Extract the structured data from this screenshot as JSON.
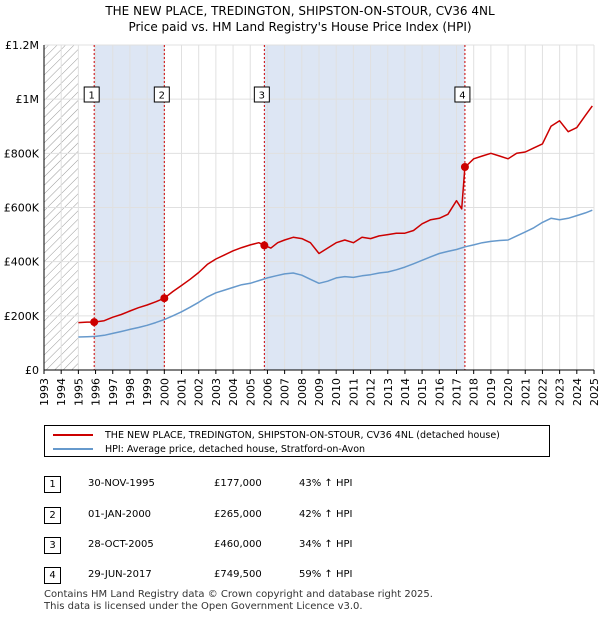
{
  "title_line1": "THE NEW PLACE, TREDINGTON, SHIPSTON-ON-STOUR, CV36 4NL",
  "title_line2": "Price paid vs. HM Land Registry's House Price Index (HPI)",
  "colors": {
    "property": "#cc0000",
    "hpi": "#6699cc",
    "shade": "#dde6f4",
    "hatch": "#999999",
    "grid": "#e0e0e0",
    "marker_border": "#cc0000"
  },
  "chart_data": {
    "type": "line",
    "xlim": [
      1993,
      2025
    ],
    "ylim": [
      0,
      1200000
    ],
    "x_ticks": [
      "1993",
      "1994",
      "1995",
      "1996",
      "1997",
      "1998",
      "1999",
      "2000",
      "2001",
      "2002",
      "2003",
      "2004",
      "2005",
      "2006",
      "2007",
      "2008",
      "2009",
      "2010",
      "2011",
      "2012",
      "2013",
      "2014",
      "2015",
      "2016",
      "2017",
      "2018",
      "2019",
      "2020",
      "2021",
      "2022",
      "2023",
      "2024",
      "2025"
    ],
    "y_ticks": [
      {
        "value": 0,
        "label": "£0"
      },
      {
        "value": 200000,
        "label": "£200K"
      },
      {
        "value": 400000,
        "label": "£400K"
      },
      {
        "value": 600000,
        "label": "£600K"
      },
      {
        "value": 800000,
        "label": "£800K"
      },
      {
        "value": 1000000,
        "label": "£1M"
      },
      {
        "value": 1200000,
        "label": "£1.2M"
      }
    ],
    "hatch_range": [
      1993,
      1995.0
    ],
    "shaded_ranges": [
      [
        1995.92,
        2000.0
      ],
      [
        2005.82,
        2017.49
      ]
    ],
    "sales": [
      {
        "id": "1",
        "x": 1995.92,
        "y": 177000
      },
      {
        "id": "2",
        "x": 2000.0,
        "y": 265000
      },
      {
        "id": "3",
        "x": 2005.82,
        "y": 460000
      },
      {
        "id": "4",
        "x": 2017.49,
        "y": 749500
      }
    ],
    "series": [
      {
        "name": "THE NEW PLACE, TREDINGTON, SHIPSTON-ON-STOUR, CV36 4NL (detached house)",
        "x": [
          1995.0,
          1995.5,
          1995.92,
          1996.5,
          1997.0,
          1997.5,
          1998.0,
          1998.5,
          1999.0,
          1999.5,
          2000.0,
          2000.5,
          2001.0,
          2001.5,
          2002.0,
          2002.5,
          2003.0,
          2003.5,
          2004.0,
          2004.5,
          2005.0,
          2005.5,
          2005.82,
          2006.2,
          2006.6,
          2007.0,
          2007.5,
          2008.0,
          2008.5,
          2009.0,
          2009.5,
          2010.0,
          2010.5,
          2011.0,
          2011.5,
          2012.0,
          2012.5,
          2013.0,
          2013.5,
          2014.0,
          2014.5,
          2015.0,
          2015.5,
          2016.0,
          2016.5,
          2017.0,
          2017.3,
          2017.49,
          2017.6,
          2018.0,
          2018.5,
          2019.0,
          2019.5,
          2020.0,
          2020.5,
          2021.0,
          2021.5,
          2022.0,
          2022.5,
          2023.0,
          2023.5,
          2024.0,
          2024.5,
          2024.9
        ],
        "y": [
          175000,
          177000,
          177000,
          182000,
          195000,
          205000,
          218000,
          230000,
          240000,
          252000,
          265000,
          290000,
          312000,
          335000,
          360000,
          390000,
          410000,
          425000,
          440000,
          452000,
          462000,
          470000,
          460000,
          450000,
          470000,
          480000,
          490000,
          485000,
          470000,
          430000,
          450000,
          470000,
          480000,
          470000,
          490000,
          485000,
          495000,
          500000,
          505000,
          505000,
          515000,
          540000,
          555000,
          560000,
          575000,
          625000,
          595000,
          749500,
          755000,
          780000,
          790000,
          800000,
          790000,
          780000,
          800000,
          805000,
          820000,
          835000,
          900000,
          920000,
          880000,
          895000,
          940000,
          975000
        ]
      },
      {
        "name": "HPI: Average price, detached house, Stratford-on-Avon",
        "x": [
          1995.0,
          1995.5,
          1996.0,
          1996.5,
          1997.0,
          1997.5,
          1998.0,
          1998.5,
          1999.0,
          1999.5,
          2000.0,
          2000.5,
          2001.0,
          2001.5,
          2002.0,
          2002.5,
          2003.0,
          2003.5,
          2004.0,
          2004.5,
          2005.0,
          2005.5,
          2006.0,
          2006.5,
          2007.0,
          2007.5,
          2008.0,
          2008.5,
          2009.0,
          2009.5,
          2010.0,
          2010.5,
          2011.0,
          2011.5,
          2012.0,
          2012.5,
          2013.0,
          2013.5,
          2014.0,
          2014.5,
          2015.0,
          2015.5,
          2016.0,
          2016.5,
          2017.0,
          2017.5,
          2018.0,
          2018.5,
          2019.0,
          2019.5,
          2020.0,
          2020.5,
          2021.0,
          2021.5,
          2022.0,
          2022.5,
          2023.0,
          2023.5,
          2024.0,
          2024.5,
          2024.9
        ],
        "y": [
          122000,
          123000,
          124000,
          128000,
          135000,
          142000,
          150000,
          157000,
          165000,
          175000,
          186000,
          200000,
          215000,
          232000,
          250000,
          270000,
          285000,
          295000,
          305000,
          315000,
          320000,
          330000,
          340000,
          348000,
          355000,
          358000,
          350000,
          335000,
          320000,
          328000,
          340000,
          345000,
          342000,
          348000,
          352000,
          358000,
          362000,
          370000,
          380000,
          392000,
          405000,
          418000,
          430000,
          438000,
          445000,
          455000,
          462000,
          470000,
          475000,
          478000,
          480000,
          495000,
          510000,
          525000,
          545000,
          560000,
          555000,
          560000,
          570000,
          580000,
          590000
        ]
      }
    ]
  },
  "legend": {
    "property_label": "THE NEW PLACE, TREDINGTON, SHIPSTON-ON-STOUR, CV36 4NL (detached house)",
    "hpi_label": "HPI: Average price, detached house, Stratford-on-Avon"
  },
  "transactions": [
    {
      "num": "1",
      "date": "30-NOV-1995",
      "price": "£177,000",
      "hpi": "43% ↑ HPI"
    },
    {
      "num": "2",
      "date": "01-JAN-2000",
      "price": "£265,000",
      "hpi": "42% ↑ HPI"
    },
    {
      "num": "3",
      "date": "28-OCT-2005",
      "price": "£460,000",
      "hpi": "34% ↑ HPI"
    },
    {
      "num": "4",
      "date": "29-JUN-2017",
      "price": "£749,500",
      "hpi": "59% ↑ HPI"
    }
  ],
  "footer_line1": "Contains HM Land Registry data © Crown copyright and database right 2025.",
  "footer_line2": "This data is licensed under the Open Government Licence v3.0."
}
